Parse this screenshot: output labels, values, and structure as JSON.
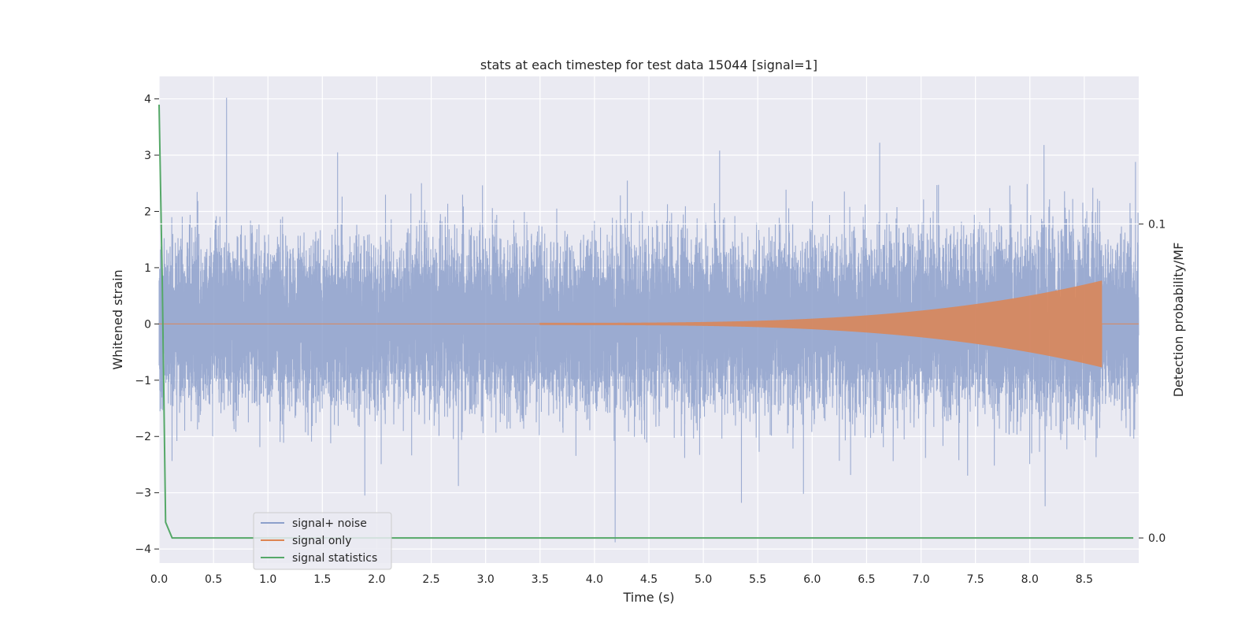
{
  "chart_data": {
    "type": "line",
    "title": "stats at each timestep for test data 15044 [signal=1]",
    "xlabel": "Time (s)",
    "ylabel": "Whitened strain",
    "y2label": "Detection probability/MF",
    "xlim": [
      0,
      9
    ],
    "ylim": [
      -4.25,
      4.4
    ],
    "y2lim": [
      -0.008,
      0.147
    ],
    "xticks": [
      "0.0",
      "0.5",
      "1.0",
      "1.5",
      "2.0",
      "2.5",
      "3.0",
      "3.5",
      "4.0",
      "4.5",
      "5.0",
      "5.5",
      "6.0",
      "6.5",
      "7.0",
      "7.5",
      "8.0",
      "8.5"
    ],
    "yticks": [
      "−4",
      "−3",
      "−2",
      "−1",
      "0",
      "1",
      "2",
      "3",
      "4"
    ],
    "y2ticks": [
      "0.0",
      "0.1"
    ],
    "grid": true,
    "legend_position": "lower-left",
    "series": [
      {
        "name": "signal+ noise",
        "color": "#8da0cb",
        "sample_rate": 2048,
        "noise_std": 0.72,
        "peaks": [
          {
            "x": 0.62,
            "y": 4.02
          },
          {
            "x": 1.64,
            "y": 3.05
          },
          {
            "x": 5.15,
            "y": 3.08
          },
          {
            "x": 6.62,
            "y": 3.22
          },
          {
            "x": 8.13,
            "y": 3.18
          },
          {
            "x": 8.97,
            "y": 2.88
          },
          {
            "x": 4.19,
            "y": -3.88
          },
          {
            "x": 1.89,
            "y": -3.05
          },
          {
            "x": 8.14,
            "y": -3.24
          },
          {
            "x": 5.35,
            "y": -3.18
          },
          {
            "x": 5.92,
            "y": -3.02
          },
          {
            "x": 2.75,
            "y": -2.88
          }
        ]
      },
      {
        "name": "signal only",
        "color": "#dd8452",
        "start": 3.5,
        "end": 8.66,
        "peak_amplitude": 0.75
      },
      {
        "name": "signal statistics",
        "color": "#55a868",
        "axis": "right",
        "x": [
          0.0,
          0.03,
          0.06,
          0.12,
          8.95
        ],
        "y": [
          0.138,
          0.08,
          0.005,
          0.0,
          0.0
        ]
      }
    ]
  }
}
